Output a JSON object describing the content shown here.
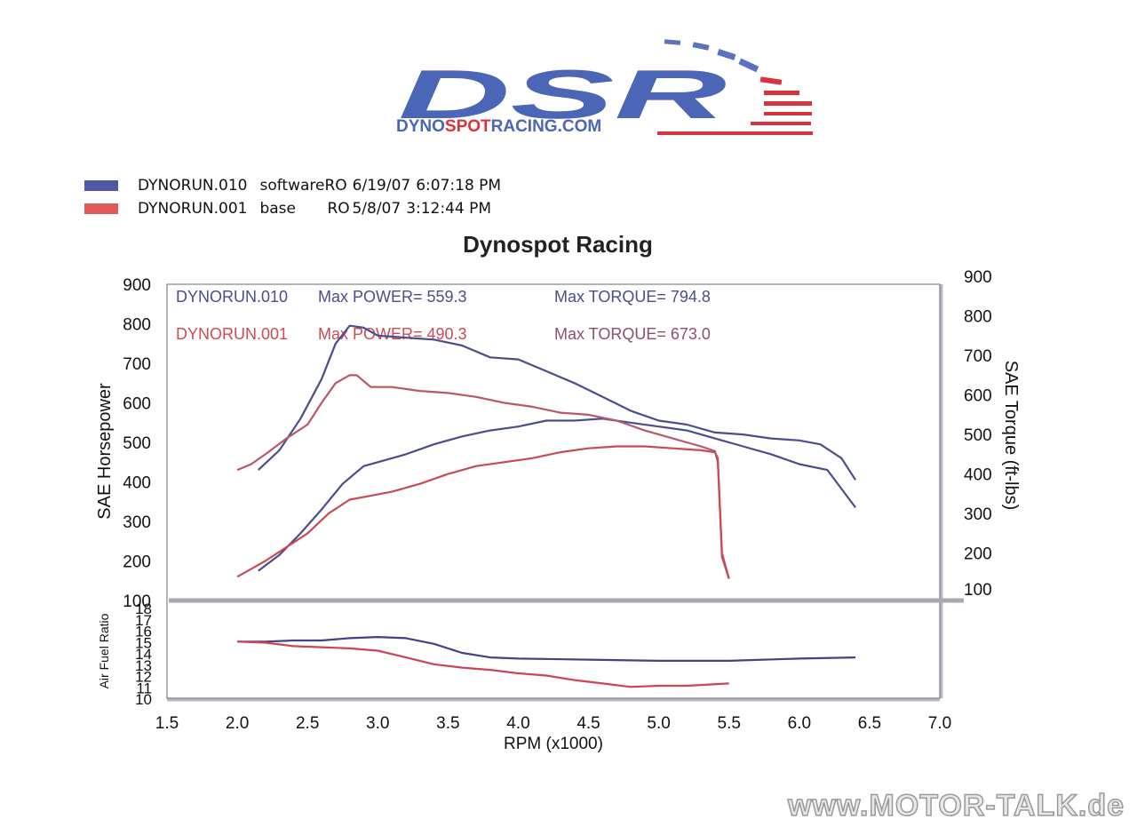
{
  "logo": {
    "mark": "DSR",
    "url_text": "DYNOSPOTRACING.COM",
    "url_parts": [
      "DYNO",
      "SPOT",
      "RACING",
      ".COM"
    ],
    "blue": "#4c66b7",
    "red": "#d9343d"
  },
  "legend": [
    {
      "run": "DYNORUN.010",
      "label": "softwareRO",
      "date": "6/19/07",
      "time": "6:07:18 PM",
      "color": "#4f58a5"
    },
    {
      "run": "DYNORUN.001",
      "label": "base",
      "label2": "RO",
      "date": "5/8/07",
      "time": "3:12:44 PM",
      "color": "#e05a5c"
    }
  ],
  "watermark": "www.MOTOR-TALK.de",
  "chart_data": [
    {
      "type": "line",
      "title": "Dynospot Racing",
      "xlabel": "RPM (x1000)",
      "ylabel": "SAE Horsepower",
      "y2label": "SAE Torque (ft-lbs)",
      "xlim": [
        1.5,
        7.0
      ],
      "ylim": [
        100,
        900
      ],
      "x_ticks": [
        "1.5",
        "2.0",
        "2.5",
        "3.0",
        "3.5",
        "4.0",
        "4.5",
        "5.0",
        "5.5",
        "6.0",
        "6.5",
        "7.0"
      ],
      "y_ticks": [
        "100",
        "200",
        "300",
        "400",
        "500",
        "600",
        "700",
        "800",
        "900"
      ],
      "y2_ticks": [
        "100",
        "200",
        "300",
        "400",
        "500",
        "600",
        "700",
        "800",
        "900"
      ],
      "grid": false,
      "annotations": [
        {
          "run": "DYNORUN.010",
          "power_text": "Max POWER= 559.3",
          "torque_text": "Max TORQUE= 794.8",
          "color": "#4a4d8e",
          "torque_color": "#4a4d8e"
        },
        {
          "run": "DYNORUN.001",
          "power_text": "Max POWER= 490.3",
          "torque_text": "Max TORQUE= 673.0",
          "color": "#cf4a52",
          "torque_color": "#8a5070"
        }
      ],
      "series": [
        {
          "name": "DYNORUN.010",
          "measure": "torque",
          "color": "#4a4d8e",
          "x": [
            2.15,
            2.3,
            2.45,
            2.6,
            2.7,
            2.8,
            2.9,
            3.0,
            3.2,
            3.4,
            3.6,
            3.8,
            4.0,
            4.2,
            4.4,
            4.6,
            4.8,
            5.0,
            5.2,
            5.4,
            5.6,
            5.8,
            6.0,
            6.15,
            6.3,
            6.4
          ],
          "y": [
            430,
            480,
            560,
            660,
            750,
            795,
            790,
            770,
            765,
            760,
            745,
            715,
            710,
            680,
            650,
            615,
            580,
            555,
            545,
            525,
            520,
            510,
            505,
            495,
            460,
            405
          ]
        },
        {
          "name": "DYNORUN.010",
          "measure": "power",
          "color": "#4a4d8e",
          "x": [
            2.15,
            2.3,
            2.45,
            2.6,
            2.75,
            2.9,
            3.0,
            3.2,
            3.4,
            3.6,
            3.8,
            4.0,
            4.2,
            4.4,
            4.6,
            4.8,
            5.0,
            5.2,
            5.4,
            5.6,
            5.8,
            6.0,
            6.2,
            6.4
          ],
          "y": [
            175,
            215,
            270,
            330,
            395,
            440,
            450,
            470,
            495,
            515,
            530,
            540,
            555,
            555,
            560,
            550,
            540,
            530,
            510,
            490,
            470,
            445,
            430,
            335
          ]
        },
        {
          "name": "DYNORUN.001",
          "measure": "torque",
          "color": "#b85868",
          "x": [
            2.0,
            2.1,
            2.2,
            2.35,
            2.5,
            2.6,
            2.7,
            2.8,
            2.85,
            2.95,
            3.1,
            3.3,
            3.5,
            3.7,
            3.9,
            4.1,
            4.3,
            4.5,
            4.7,
            4.9,
            5.1,
            5.3,
            5.4,
            5.42,
            5.45,
            5.5
          ],
          "y": [
            430,
            445,
            470,
            510,
            545,
            600,
            650,
            670,
            670,
            640,
            640,
            630,
            625,
            615,
            600,
            590,
            575,
            570,
            555,
            530,
            510,
            490,
            478,
            450,
            220,
            155
          ]
        },
        {
          "name": "DYNORUN.001",
          "measure": "power",
          "color": "#c84a52",
          "x": [
            2.0,
            2.1,
            2.2,
            2.35,
            2.5,
            2.65,
            2.8,
            2.95,
            3.1,
            3.3,
            3.5,
            3.7,
            3.9,
            4.1,
            4.3,
            4.5,
            4.7,
            4.9,
            5.1,
            5.3,
            5.4,
            5.42,
            5.45,
            5.5
          ],
          "y": [
            160,
            180,
            200,
            235,
            270,
            320,
            355,
            365,
            375,
            395,
            420,
            440,
            450,
            460,
            475,
            485,
            490,
            490,
            485,
            480,
            475,
            460,
            210,
            155
          ]
        }
      ]
    },
    {
      "type": "line",
      "title": "",
      "xlabel": "RPM (x1000)",
      "ylabel": "Air Fuel Ratio",
      "xlim": [
        1.5,
        7.0
      ],
      "ylim": [
        10,
        18
      ],
      "y_ticks": [
        "10",
        "11",
        "12",
        "13",
        "14",
        "15",
        "16",
        "17",
        "18"
      ],
      "grid": false,
      "series": [
        {
          "name": "DYNORUN.010",
          "color": "#44408a",
          "x": [
            2.0,
            2.2,
            2.4,
            2.6,
            2.8,
            3.0,
            3.2,
            3.4,
            3.6,
            3.8,
            4.0,
            4.5,
            5.0,
            5.5,
            6.0,
            6.4
          ],
          "y": [
            15.0,
            15.0,
            15.1,
            15.1,
            15.3,
            15.4,
            15.3,
            14.8,
            14.0,
            13.6,
            13.5,
            13.4,
            13.3,
            13.3,
            13.5,
            13.6
          ]
        },
        {
          "name": "DYNORUN.001",
          "color": "#cc4455",
          "x": [
            2.0,
            2.2,
            2.4,
            2.6,
            2.8,
            3.0,
            3.2,
            3.4,
            3.6,
            3.8,
            4.0,
            4.2,
            4.4,
            4.6,
            4.8,
            5.0,
            5.2,
            5.5
          ],
          "y": [
            15.0,
            14.9,
            14.6,
            14.5,
            14.4,
            14.2,
            13.6,
            13.0,
            12.7,
            12.5,
            12.2,
            12.0,
            11.6,
            11.3,
            11.0,
            11.1,
            11.1,
            11.3
          ]
        }
      ]
    }
  ]
}
